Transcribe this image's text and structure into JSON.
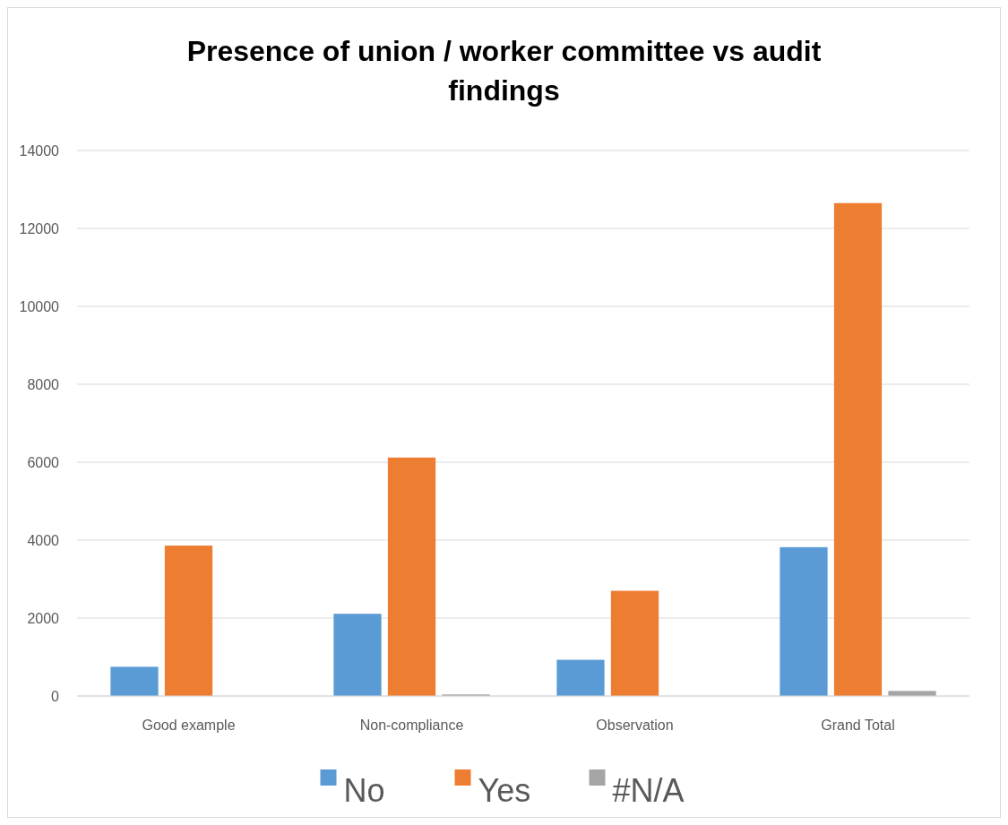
{
  "chart_data": {
    "type": "bar",
    "title": "Presence of union / worker committee vs audit findings",
    "categories": [
      "Good example",
      "Non-compliance",
      "Observation",
      "Grand Total"
    ],
    "series": [
      {
        "name": "No",
        "color": "#5b9bd5",
        "values": [
          750,
          2110,
          930,
          3820
        ]
      },
      {
        "name": "Yes",
        "color": "#ed7d31",
        "values": [
          3860,
          6120,
          2700,
          12650
        ]
      },
      {
        "name": "#N/A",
        "color": "#a5a5a5",
        "values": [
          0,
          40,
          0,
          130
        ]
      }
    ],
    "ylim": [
      0,
      14000
    ],
    "yticks": [
      0,
      2000,
      4000,
      6000,
      8000,
      10000,
      12000,
      14000
    ],
    "grid": "y",
    "legend": "bottom"
  }
}
